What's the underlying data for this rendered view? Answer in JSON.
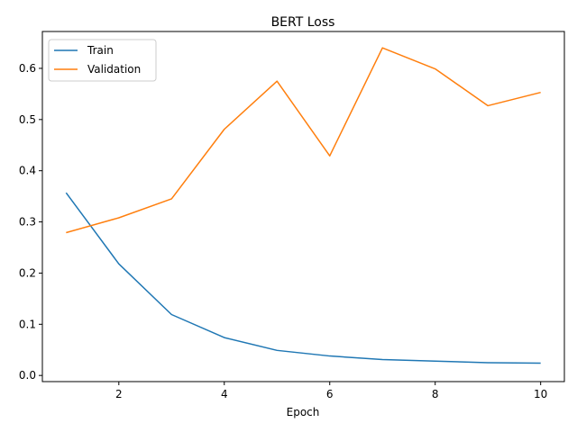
{
  "chart_data": {
    "type": "line",
    "title": "BERT Loss",
    "xlabel": "Epoch",
    "ylabel": "",
    "x": [
      1,
      2,
      3,
      4,
      5,
      6,
      7,
      8,
      9,
      10
    ],
    "xlim": [
      0.55,
      10.45
    ],
    "ylim": [
      -0.012,
      0.672
    ],
    "xticks": [
      2,
      4,
      6,
      8,
      10
    ],
    "yticks": [
      0.0,
      0.1,
      0.2,
      0.3,
      0.4,
      0.5,
      0.6
    ],
    "ytick_labels": [
      "0.0",
      "0.1",
      "0.2",
      "0.3",
      "0.4",
      "0.5",
      "0.6"
    ],
    "xtick_labels": [
      "2",
      "4",
      "6",
      "8",
      "10"
    ],
    "grid": false,
    "legend_position": "upper-left",
    "series": [
      {
        "name": "Train",
        "color": "#1f77b4",
        "values": [
          0.357,
          0.218,
          0.119,
          0.074,
          0.049,
          0.038,
          0.031,
          0.028,
          0.025,
          0.024
        ]
      },
      {
        "name": "Validation",
        "color": "#ff7f0e",
        "values": [
          0.279,
          0.308,
          0.345,
          0.481,
          0.575,
          0.429,
          0.64,
          0.599,
          0.527,
          0.553
        ]
      }
    ]
  }
}
